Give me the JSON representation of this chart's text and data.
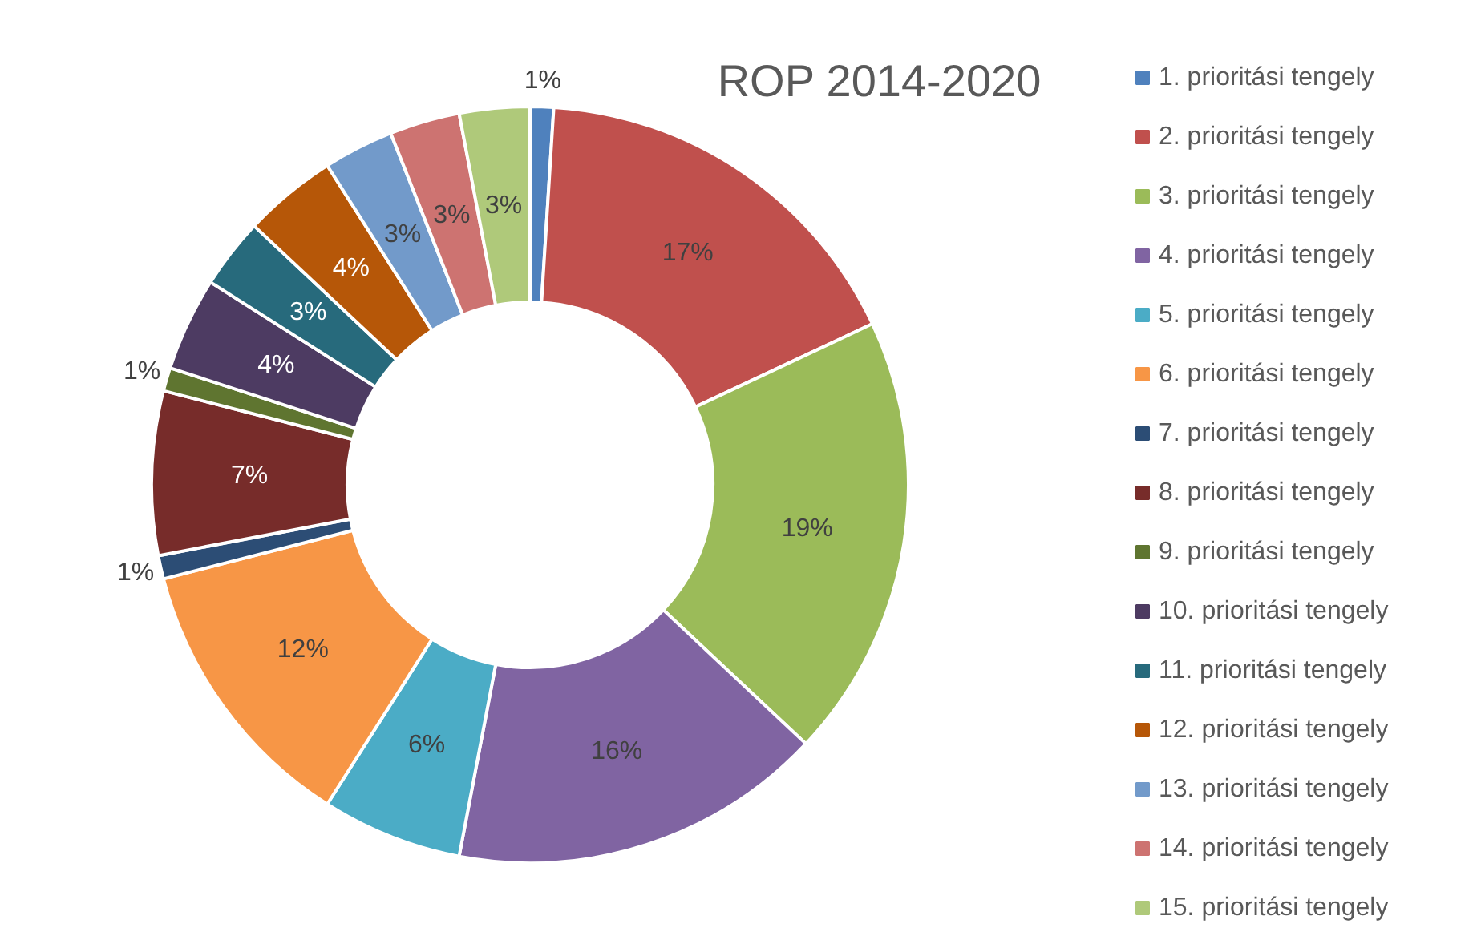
{
  "chart_data": {
    "type": "donut",
    "title": "ROP 2014-2020",
    "categories": [
      "1. prioritási tengely",
      "2. prioritási tengely",
      "3. prioritási tengely",
      "4. prioritási tengely",
      "5. prioritási tengely",
      "6. prioritási tengely",
      "7. prioritási tengely",
      "8. prioritási tengely",
      "9. prioritási tengely",
      "10. prioritási tengely",
      "11. prioritási tengely",
      "12. prioritási tengely",
      "13. prioritási tengely",
      "14. prioritási tengely",
      "15. prioritási tengely"
    ],
    "values": [
      1,
      17,
      19,
      16,
      6,
      12,
      1,
      7,
      1,
      4,
      3,
      4,
      3,
      3,
      3
    ],
    "value_labels": [
      "1%",
      "17%",
      "19%",
      "16%",
      "6%",
      "12%",
      "1%",
      "7%",
      "1%",
      "4%",
      "3%",
      "4%",
      "3%",
      "3%",
      "3%"
    ],
    "colors": [
      "#4f81bd",
      "#c0504d",
      "#9bbb59",
      "#8064a2",
      "#4bacc6",
      "#f79646",
      "#2c4d75",
      "#772c2a",
      "#5f7530",
      "#4d3b62",
      "#276a7c",
      "#b65708",
      "#729aca",
      "#cd7371",
      "#afc97a"
    ],
    "legend": "right"
  }
}
